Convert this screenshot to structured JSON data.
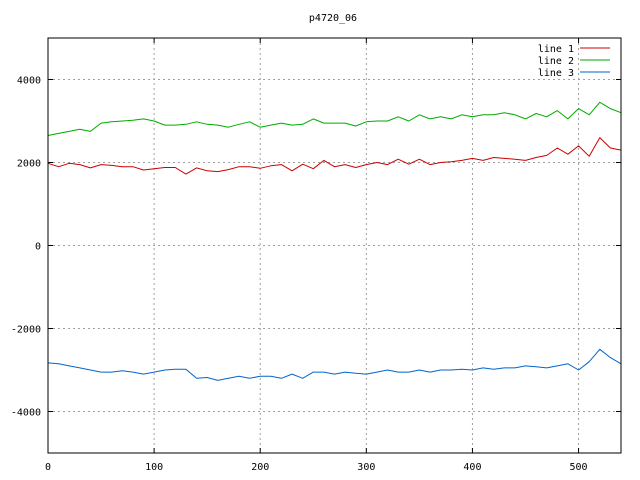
{
  "chart_data": {
    "type": "line",
    "title": "p4720_06",
    "xlabel": "",
    "ylabel": "",
    "xlim": [
      0,
      540
    ],
    "ylim": [
      -5000,
      5000
    ],
    "xticks": [
      0,
      100,
      200,
      300,
      400,
      500
    ],
    "yticks": [
      -4000,
      -2000,
      0,
      2000,
      4000
    ],
    "grid": true,
    "legend_position": "top-right",
    "series": [
      {
        "name": "line 1",
        "color": "#cc0000",
        "x": [
          0,
          10,
          20,
          30,
          40,
          50,
          60,
          70,
          80,
          90,
          100,
          110,
          120,
          130,
          140,
          150,
          160,
          170,
          180,
          190,
          200,
          210,
          220,
          230,
          240,
          250,
          260,
          270,
          280,
          290,
          300,
          310,
          320,
          330,
          340,
          350,
          360,
          370,
          380,
          390,
          400,
          410,
          420,
          430,
          440,
          450,
          460,
          470,
          480,
          490,
          500,
          510,
          520,
          530,
          540
        ],
        "y": [
          1980,
          1900,
          1980,
          1950,
          1870,
          1950,
          1930,
          1900,
          1900,
          1820,
          1850,
          1880,
          1880,
          1720,
          1870,
          1800,
          1780,
          1830,
          1900,
          1900,
          1860,
          1920,
          1950,
          1800,
          1960,
          1850,
          2050,
          1900,
          1950,
          1880,
          1950,
          2000,
          1950,
          2080,
          1960,
          2080,
          1950,
          2000,
          2020,
          2050,
          2100,
          2050,
          2120,
          2100,
          2080,
          2050,
          2120,
          2170,
          2350,
          2200,
          2400,
          2150,
          2600,
          2350,
          2300
        ]
      },
      {
        "name": "line 2",
        "color": "#00aa00",
        "x": [
          0,
          10,
          20,
          30,
          40,
          50,
          60,
          70,
          80,
          90,
          100,
          110,
          120,
          130,
          140,
          150,
          160,
          170,
          180,
          190,
          200,
          210,
          220,
          230,
          240,
          250,
          260,
          270,
          280,
          290,
          300,
          310,
          320,
          330,
          340,
          350,
          360,
          370,
          380,
          390,
          400,
          410,
          420,
          430,
          440,
          450,
          460,
          470,
          480,
          490,
          500,
          510,
          520,
          530,
          540
        ],
        "y": [
          2650,
          2700,
          2750,
          2800,
          2750,
          2950,
          2980,
          3000,
          3020,
          3050,
          3000,
          2900,
          2900,
          2920,
          2980,
          2920,
          2900,
          2850,
          2920,
          2980,
          2850,
          2900,
          2950,
          2900,
          2920,
          3050,
          2950,
          2950,
          2950,
          2880,
          2980,
          3000,
          3000,
          3100,
          3000,
          3150,
          3050,
          3100,
          3050,
          3150,
          3100,
          3150,
          3150,
          3200,
          3150,
          3050,
          3180,
          3100,
          3250,
          3050,
          3300,
          3150,
          3450,
          3300,
          3200
        ]
      },
      {
        "name": "line 3",
        "color": "#0066cc",
        "x": [
          0,
          10,
          20,
          30,
          40,
          50,
          60,
          70,
          80,
          90,
          100,
          110,
          120,
          130,
          140,
          150,
          160,
          170,
          180,
          190,
          200,
          210,
          220,
          230,
          240,
          250,
          260,
          270,
          280,
          290,
          300,
          310,
          320,
          330,
          340,
          350,
          360,
          370,
          380,
          390,
          400,
          410,
          420,
          430,
          440,
          450,
          460,
          470,
          480,
          490,
          500,
          510,
          520,
          530,
          540
        ],
        "y": [
          -2830,
          -2850,
          -2900,
          -2950,
          -3000,
          -3050,
          -3050,
          -3020,
          -3050,
          -3100,
          -3050,
          -3000,
          -2980,
          -2980,
          -3200,
          -3180,
          -3250,
          -3200,
          -3150,
          -3200,
          -3150,
          -3150,
          -3200,
          -3100,
          -3200,
          -3050,
          -3050,
          -3100,
          -3050,
          -3080,
          -3100,
          -3050,
          -3000,
          -3050,
          -3050,
          -3000,
          -3050,
          -3000,
          -3000,
          -2980,
          -3000,
          -2950,
          -2980,
          -2950,
          -2950,
          -2900,
          -2920,
          -2950,
          -2900,
          -2850,
          -3000,
          -2800,
          -2500,
          -2700,
          -2850
        ]
      }
    ]
  }
}
